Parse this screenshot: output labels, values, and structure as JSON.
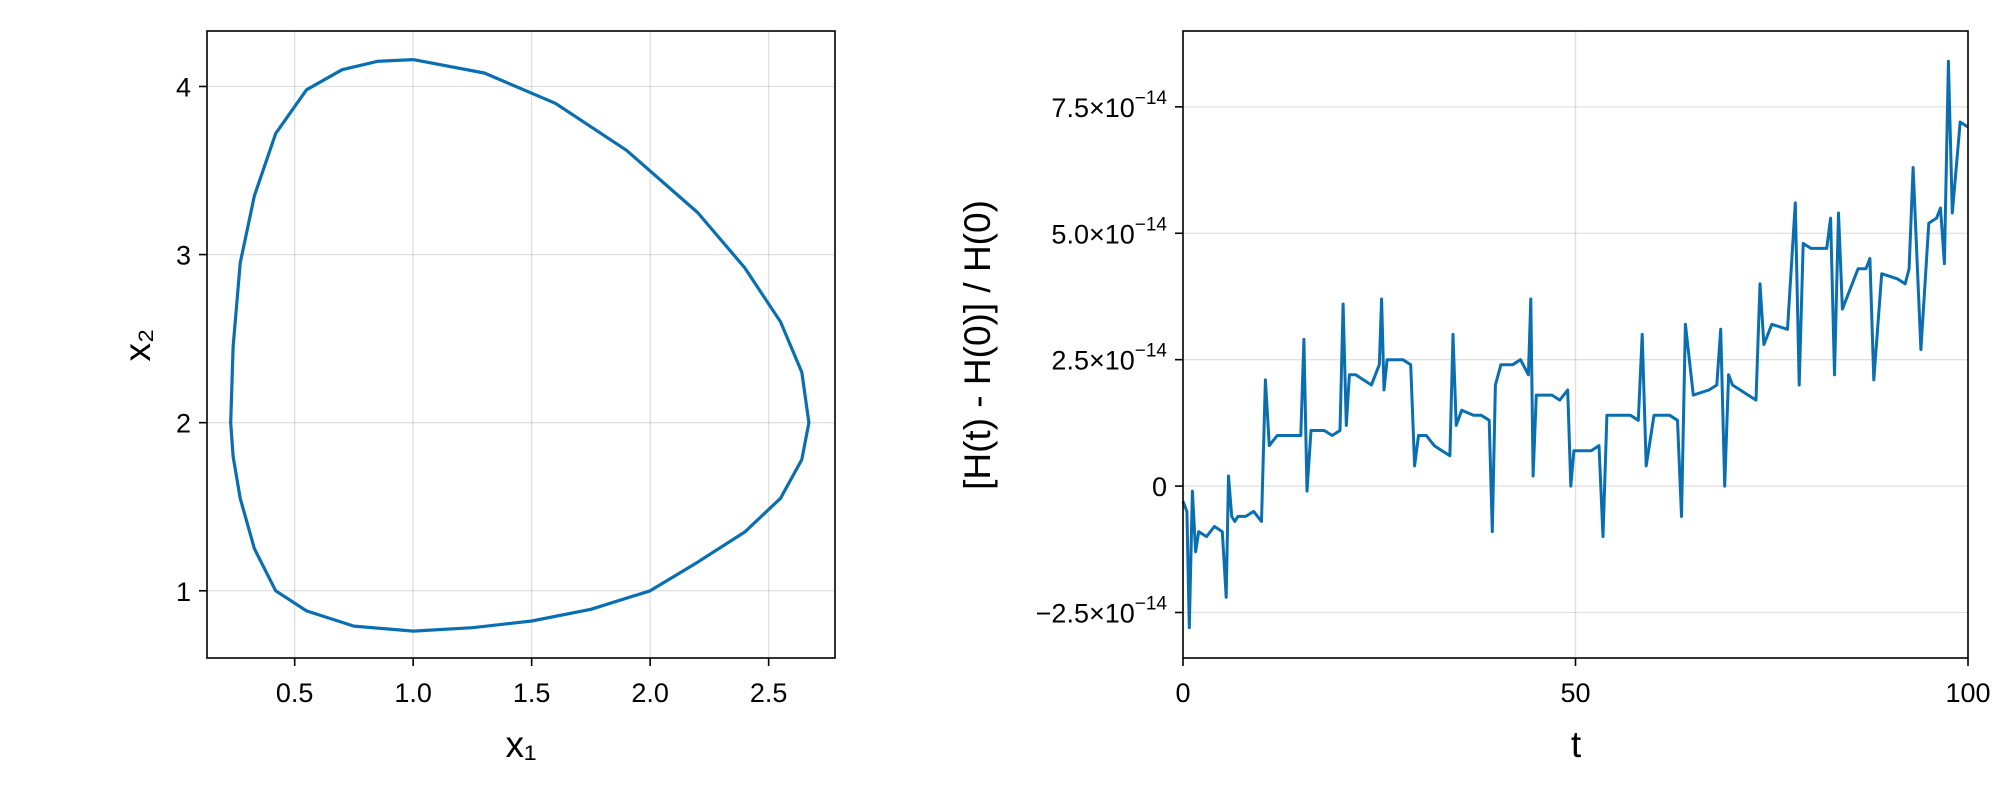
{
  "chart_data": [
    {
      "type": "line",
      "title": "",
      "xlabel": "x₁",
      "ylabel": "x₂",
      "xlim": [
        0.13,
        2.78
      ],
      "ylim": [
        0.6,
        4.33
      ],
      "xticks": [
        0.5,
        1.0,
        1.5,
        2.0,
        2.5
      ],
      "xtick_labels": [
        "0.5",
        "1.0",
        "1.5",
        "2.0",
        "2.5"
      ],
      "yticks": [
        1,
        2,
        3,
        4
      ],
      "ytick_labels": [
        "1",
        "2",
        "3",
        "4"
      ],
      "grid": true,
      "legend": "none",
      "color": "#0a6fb0",
      "series": [
        {
          "x": [
            1.0,
            1.3,
            1.6,
            1.9,
            2.2,
            2.4,
            2.55,
            2.64,
            2.67,
            2.64,
            2.55,
            2.4,
            2.2,
            2.0,
            1.75,
            1.5,
            1.25,
            1.0,
            0.75,
            0.55,
            0.42,
            0.33,
            0.27,
            0.24,
            0.23,
            0.24,
            0.27,
            0.33,
            0.42,
            0.55,
            0.7,
            0.85,
            1.0
          ],
          "y": [
            4.16,
            4.08,
            3.9,
            3.62,
            3.25,
            2.92,
            2.6,
            2.3,
            2.0,
            1.78,
            1.55,
            1.35,
            1.17,
            1.0,
            0.89,
            0.82,
            0.78,
            0.76,
            0.79,
            0.88,
            1.0,
            1.25,
            1.55,
            1.8,
            2.0,
            2.45,
            2.95,
            3.35,
            3.72,
            3.98,
            4.1,
            4.15,
            4.16
          ]
        }
      ]
    },
    {
      "type": "line",
      "title": "",
      "xlabel": "t",
      "ylabel": "[H(t) - H(0)] / H(0)",
      "xlim": [
        0,
        100
      ],
      "ylim": [
        -3.4e-14,
        9e-14
      ],
      "xticks": [
        0,
        50,
        100
      ],
      "xtick_labels": [
        "0",
        "50",
        "100"
      ],
      "yticks": [
        -2.5e-14,
        0,
        2.5e-14,
        5e-14,
        7.5e-14
      ],
      "ytick_labels": [
        {
          "mantissa": "−2.5×10",
          "exp": "−14"
        },
        {
          "mantissa": "0",
          "exp": ""
        },
        {
          "mantissa": "2.5×10",
          "exp": "−14"
        },
        {
          "mantissa": "5.0×10",
          "exp": "−14"
        },
        {
          "mantissa": "7.5×10",
          "exp": "−14"
        }
      ],
      "grid": true,
      "legend": "none",
      "color": "#0a6fb0",
      "series": [
        {
          "x": [
            0,
            0.5,
            0.8,
            1.2,
            1.6,
            2.0,
            3.0,
            4.0,
            5.0,
            5.5,
            5.8,
            6.2,
            6.6,
            7.0,
            8.0,
            9.0,
            10.0,
            10.5,
            11.0,
            12.0,
            13.0,
            14.0,
            15.0,
            15.4,
            15.8,
            16.3,
            17.0,
            18.0,
            19.0,
            20.0,
            20.4,
            20.8,
            21.2,
            22.0,
            23.0,
            24.0,
            25.0,
            25.3,
            25.6,
            26.0,
            27.0,
            28.0,
            29.0,
            29.5,
            30.0,
            31.0,
            32.0,
            33.0,
            34.0,
            34.4,
            34.8,
            35.5,
            37.0,
            38.0,
            39.0,
            39.4,
            39.8,
            40.5,
            42.0,
            43.0,
            44.0,
            44.3,
            44.6,
            45.0,
            47.0,
            48.0,
            49.0,
            49.4,
            49.8,
            50.5,
            52.0,
            53.0,
            53.5,
            54.0,
            55.0,
            57.0,
            58.0,
            58.5,
            59.0,
            60.0,
            62.0,
            63.0,
            63.5,
            64.0,
            65.0,
            67.0,
            68.0,
            68.5,
            69.0,
            69.5,
            70.0,
            72.0,
            73.0,
            73.5,
            74.0,
            75.0,
            77.0,
            78.0,
            78.5,
            79.0,
            80.0,
            82.0,
            82.5,
            83.0,
            83.5,
            84.0,
            86.0,
            87.0,
            87.5,
            88.0,
            89.0,
            91.0,
            92.0,
            92.5,
            93.0,
            94.0,
            95.0,
            96.0,
            96.5,
            97.0,
            97.5,
            98.0,
            99.0,
            100.0
          ],
          "y": [
            -3e-15,
            -5e-15,
            -2.8e-14,
            -1e-15,
            -1.3e-14,
            -9e-15,
            -1e-14,
            -8e-15,
            -9e-15,
            -2.2e-14,
            2e-15,
            -6e-15,
            -7e-15,
            -6e-15,
            -6e-15,
            -5e-15,
            -7e-15,
            2.1e-14,
            8e-15,
            1e-14,
            1e-14,
            1e-14,
            1e-14,
            2.9e-14,
            -1e-15,
            1.1e-14,
            1.1e-14,
            1.1e-14,
            1e-14,
            1.1e-14,
            3.6e-14,
            1.2e-14,
            2.2e-14,
            2.2e-14,
            2.1e-14,
            2e-14,
            2.4e-14,
            3.7e-14,
            1.9e-14,
            2.5e-14,
            2.5e-14,
            2.5e-14,
            2.4e-14,
            4e-15,
            1e-14,
            1e-14,
            8e-15,
            7e-15,
            6e-15,
            3e-14,
            1.2e-14,
            1.5e-14,
            1.4e-14,
            1.4e-14,
            1.3e-14,
            -9e-15,
            2e-14,
            2.4e-14,
            2.4e-14,
            2.5e-14,
            2.2e-14,
            3.7e-14,
            2e-15,
            1.8e-14,
            1.8e-14,
            1.7e-14,
            1.9e-14,
            0.0,
            7e-15,
            7e-15,
            7e-15,
            8e-15,
            -1e-14,
            1.4e-14,
            1.4e-14,
            1.4e-14,
            1.3e-14,
            3e-14,
            4e-15,
            1.4e-14,
            1.4e-14,
            1.3e-14,
            -6e-15,
            3.2e-14,
            1.8e-14,
            1.9e-14,
            2e-14,
            3.1e-14,
            0.0,
            2.2e-14,
            2e-14,
            1.8e-14,
            1.7e-14,
            4e-14,
            2.8e-14,
            3.2e-14,
            3.1e-14,
            5.6e-14,
            2e-14,
            4.8e-14,
            4.7e-14,
            4.7e-14,
            5.3e-14,
            2.2e-14,
            5.4e-14,
            3.5e-14,
            4.3e-14,
            4.3e-14,
            4.5e-14,
            2.1e-14,
            4.2e-14,
            4.1e-14,
            4e-14,
            4.3e-14,
            6.3e-14,
            2.7e-14,
            5.2e-14,
            5.3e-14,
            5.5e-14,
            4.4e-14,
            8.4e-14,
            5.4e-14,
            7.2e-14,
            7.1e-14
          ]
        }
      ]
    }
  ]
}
